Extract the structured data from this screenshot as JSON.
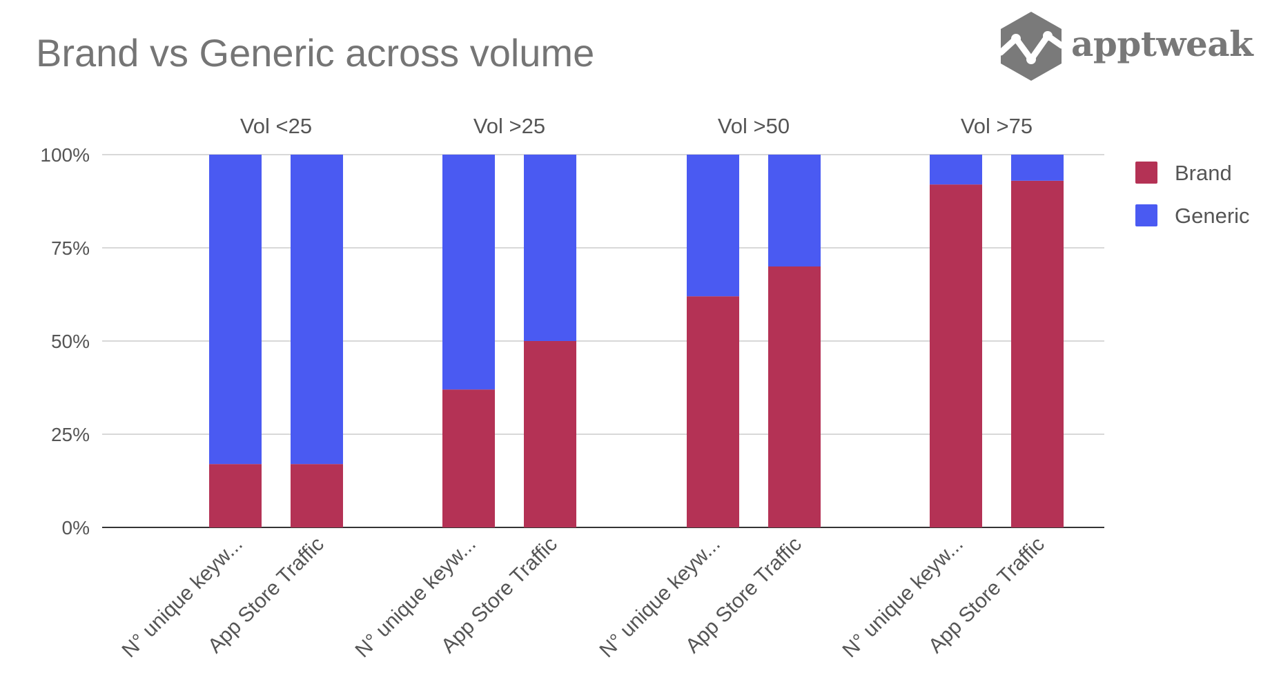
{
  "chart_data": {
    "type": "bar",
    "stacked": true,
    "percent": true,
    "title": "Brand vs Generic across volume",
    "groups": [
      "Vol <25",
      "Vol >25",
      "Vol >50",
      "Vol >75"
    ],
    "categories": [
      "N° unique keyw...",
      "App Store Traffic"
    ],
    "series": [
      {
        "name": "Brand",
        "color": "#b43255",
        "values": [
          [
            17,
            17
          ],
          [
            37,
            50
          ],
          [
            62,
            70
          ],
          [
            92,
            93
          ]
        ]
      },
      {
        "name": "Generic",
        "color": "#4a5af2",
        "values": [
          [
            83,
            83
          ],
          [
            63,
            50
          ],
          [
            38,
            30
          ],
          [
            8,
            7
          ]
        ]
      }
    ],
    "yticks": [
      "0%",
      "25%",
      "50%",
      "75%",
      "100%"
    ],
    "ylim": [
      0,
      100
    ],
    "legend_position": "right",
    "grid": true
  },
  "logo": {
    "text": "apptweak",
    "icon": "apptweak-hexagon-logo-icon"
  },
  "colors": {
    "title": "#757575",
    "text": "#555555",
    "grid": "#cccccc",
    "axis": "#333333"
  }
}
